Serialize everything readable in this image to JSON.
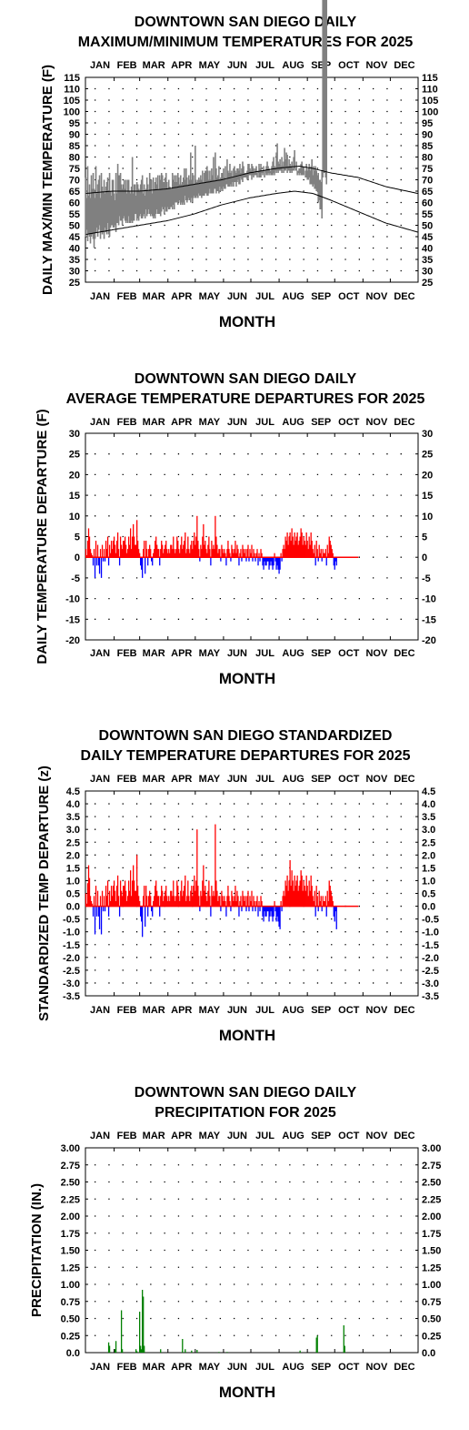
{
  "months": [
    "JAN",
    "FEB",
    "MAR",
    "APR",
    "MAY",
    "JUN",
    "JUL",
    "AUG",
    "SEP",
    "OCT",
    "NOV",
    "DEC"
  ],
  "chart_data": [
    {
      "id": "temps",
      "type": "line",
      "title": [
        "DOWNTOWN SAN DIEGO DAILY",
        "MAXIMUM/MINIMUM TEMPERATURES FOR 2025"
      ],
      "xlabel": "MONTH",
      "ylabel": "DAILY MAX/MIN TEMPERATURE (F)",
      "ylim": [
        25,
        115
      ],
      "yticks": [
        "115",
        "110",
        "105",
        "100",
        "95",
        "90",
        "85",
        "80",
        "75",
        "70",
        "65",
        "60",
        "55",
        "50",
        "45",
        "40",
        "35",
        "30",
        "25"
      ],
      "grid": true,
      "normal_max_anchors": [
        [
          1,
          64
        ],
        [
          30,
          65
        ],
        [
          60,
          65
        ],
        [
          90,
          66
        ],
        [
          120,
          68
        ],
        [
          150,
          70
        ],
        [
          180,
          73
        ],
        [
          210,
          75
        ],
        [
          235,
          76
        ],
        [
          250,
          75
        ],
        [
          270,
          73
        ],
        [
          300,
          71
        ],
        [
          330,
          67
        ],
        [
          365,
          64
        ]
      ],
      "normal_min_anchors": [
        [
          1,
          46
        ],
        [
          30,
          48
        ],
        [
          60,
          50
        ],
        [
          90,
          52
        ],
        [
          120,
          55
        ],
        [
          150,
          59
        ],
        [
          180,
          62
        ],
        [
          210,
          64
        ],
        [
          230,
          65
        ],
        [
          250,
          64
        ],
        [
          270,
          61
        ],
        [
          300,
          56
        ],
        [
          330,
          51
        ],
        [
          365,
          47
        ]
      ],
      "daily_max": [
        71,
        62,
        76,
        63,
        68,
        62,
        72,
        66,
        73,
        66,
        62,
        76,
        64,
        68,
        70,
        72,
        62,
        73,
        67,
        65,
        70,
        64,
        67,
        69,
        71,
        65,
        73,
        65,
        63,
        70,
        70,
        64,
        61,
        73,
        64,
        77,
        72,
        72,
        73,
        68,
        66,
        68,
        70,
        66,
        70,
        64,
        70,
        70,
        65,
        64,
        67,
        80,
        64,
        68,
        68,
        63,
        69,
        68,
        66,
        65,
        68,
        70,
        72,
        64,
        68,
        63,
        66,
        71,
        68,
        65,
        73,
        70,
        70,
        64,
        71,
        66,
        69,
        71,
        68,
        72,
        66,
        72,
        70,
        73,
        72,
        69,
        69,
        71,
        73,
        69,
        66,
        70,
        67,
        66,
        66,
        73,
        70,
        72,
        69,
        72,
        69,
        73,
        71,
        68,
        72,
        68,
        69,
        71,
        75,
        70,
        75,
        71,
        68,
        72,
        70,
        82,
        70,
        73,
        72,
        68,
        85,
        70,
        69,
        70,
        71,
        70,
        72,
        70,
        74,
        69,
        73,
        74,
        74,
        76,
        74,
        70,
        74,
        70,
        75,
        72,
        80,
        70,
        82,
        75,
        71,
        72,
        76,
        70,
        71,
        73,
        73,
        75,
        71,
        76,
        70,
        79,
        74,
        73,
        77,
        73,
        74,
        71,
        75,
        76,
        74,
        73,
        75,
        75,
        74,
        77,
        73,
        75,
        78,
        76,
        73,
        73,
        73,
        74,
        77,
        77,
        75,
        74,
        77,
        76,
        75,
        73,
        75,
        76,
        73,
        74,
        77,
        75,
        77,
        74,
        74,
        76,
        73,
        74,
        76,
        78,
        76,
        75,
        74,
        74,
        76,
        78,
        80,
        76,
        75,
        82,
        86,
        78,
        77,
        79,
        76,
        80,
        76,
        78,
        84,
        79,
        82,
        81,
        76,
        79,
        77,
        76,
        78,
        75,
        80,
        83,
        75,
        78,
        74,
        74,
        75,
        75,
        77,
        78,
        76,
        75,
        73,
        74,
        77,
        74,
        75,
        77,
        74,
        76,
        79,
        72,
        76,
        74,
        76,
        74,
        72,
        73,
        70,
        70,
        69,
        74,
        71,
        73,
        73,
        71,
        68
      ],
      "daily_min": [
        45,
        48,
        43,
        46,
        45,
        42,
        45,
        46,
        44,
        40,
        44,
        47,
        49,
        45,
        48,
        50,
        44,
        47,
        46,
        47,
        44,
        49,
        47,
        46,
        51,
        46,
        45,
        49,
        50,
        50,
        49,
        49,
        50,
        47,
        51,
        51,
        50,
        54,
        52,
        52,
        50,
        53,
        54,
        52,
        51,
        52,
        51,
        54,
        51,
        51,
        52,
        51,
        52,
        52,
        55,
        55,
        52,
        53,
        52,
        54,
        55,
        53,
        53,
        54,
        55,
        53,
        57,
        54,
        55,
        57,
        55,
        54,
        55,
        54,
        53,
        54,
        53,
        55,
        57,
        55,
        55,
        55,
        54,
        56,
        58,
        57,
        55,
        58,
        56,
        56,
        58,
        57,
        57,
        58,
        58,
        57,
        59,
        57,
        60,
        60,
        60,
        59,
        60,
        61,
        59,
        60,
        59,
        60,
        59,
        63,
        61,
        60,
        61,
        62,
        61,
        60,
        62,
        60,
        62,
        63,
        62,
        62,
        63,
        62,
        64,
        63,
        63,
        62,
        63,
        63,
        63,
        64,
        64,
        63,
        63,
        64,
        66,
        64,
        64,
        64,
        64,
        66,
        66,
        64,
        65,
        65,
        64,
        67,
        65,
        66,
        65,
        67,
        66,
        66,
        68,
        68,
        67,
        67,
        67,
        68,
        67,
        69,
        67,
        69,
        69,
        67,
        69,
        70,
        68,
        68,
        71,
        70,
        69,
        71,
        71,
        71,
        71,
        70,
        70,
        72,
        72,
        72,
        70,
        72,
        71,
        72,
        72,
        72,
        71,
        73,
        71,
        71,
        71,
        73,
        72,
        73,
        71,
        73,
        72,
        72,
        73,
        72,
        73,
        72,
        72,
        72,
        73,
        72,
        74,
        73,
        74,
        73,
        74,
        74,
        74,
        73,
        75,
        73,
        74,
        74,
        75,
        73,
        74,
        74,
        73,
        74,
        73,
        74,
        74,
        75,
        74,
        74,
        72,
        73,
        72,
        73,
        72,
        72,
        72,
        72,
        73,
        71,
        71,
        70,
        70,
        71,
        68,
        68,
        68,
        67,
        68,
        66,
        66,
        65,
        65,
        60,
        61,
        57,
        57,
        53
      ]
    },
    {
      "id": "depart",
      "type": "bar",
      "title": [
        "DOWNTOWN SAN DIEGO DAILY",
        "AVERAGE TEMPERATURE DEPARTURES FOR 2025"
      ],
      "xlabel": "MONTH",
      "ylabel": "DAILY TEMPERATURE DEPARTURE (F)",
      "ylim": [
        -20,
        30
      ],
      "yticks": [
        "30",
        "25",
        "20",
        "15",
        "10",
        "5",
        "0",
        "-5",
        "-10",
        "-15",
        "-20"
      ],
      "grid": true,
      "positive_color": "#ff0000",
      "negative_color": "#0000ff",
      "values": [
        2,
        0.5,
        4,
        7,
        5,
        2,
        1,
        0.5,
        -2,
        2,
        -5,
        4,
        -2,
        3,
        -2,
        -4,
        2,
        -5,
        3,
        -1,
        2,
        -1,
        4,
        2,
        5,
        -2,
        3,
        1,
        4,
        2,
        4,
        5,
        3,
        1,
        4,
        6,
        2,
        -2,
        5,
        3,
        2,
        4,
        4,
        5,
        3,
        1,
        2,
        5,
        3,
        7,
        2,
        5,
        8,
        5,
        3,
        3,
        9,
        4,
        2,
        1,
        -2,
        -3,
        -5,
        2,
        4,
        -4,
        4,
        2,
        -2,
        2,
        3,
        2,
        -1,
        -2,
        1,
        2,
        4,
        5,
        3,
        2,
        2,
        -2,
        2,
        4,
        3,
        1,
        2,
        3,
        4,
        2,
        1,
        2,
        1,
        3,
        3,
        2,
        5,
        2,
        1,
        2,
        5,
        4,
        2,
        1,
        3,
        5,
        2,
        3,
        4,
        6,
        1,
        2,
        5,
        2,
        1,
        3,
        4,
        2,
        4,
        6,
        3,
        5,
        10,
        4,
        2,
        -1,
        3,
        2,
        5,
        8,
        3,
        4,
        2,
        1,
        3,
        5,
        2,
        -2,
        4,
        2,
        3,
        2,
        10,
        5,
        3,
        1,
        2,
        2,
        -1,
        3,
        2,
        1,
        2,
        1,
        -2,
        2,
        4,
        2,
        1,
        -1,
        3,
        2,
        1,
        2,
        4,
        1,
        3,
        2,
        -2,
        1,
        2,
        -1,
        3,
        2,
        1,
        2,
        -1,
        2,
        3,
        -1,
        2,
        1,
        3,
        -1,
        2,
        1,
        -1,
        1,
        2,
        -2,
        1,
        -1,
        2,
        1,
        -2,
        -3,
        -1,
        -2,
        -2,
        -1,
        -1,
        -3,
        -2,
        -1,
        -2,
        -3,
        -2,
        1,
        -1,
        -3,
        -2,
        -3,
        -4,
        -3,
        1,
        -1,
        2,
        3,
        2,
        5,
        4,
        6,
        3,
        5,
        6,
        4,
        7,
        5,
        3,
        6,
        4,
        5,
        6,
        3,
        4,
        5,
        7,
        6,
        3,
        5,
        4,
        3,
        6,
        4,
        2,
        5,
        3,
        6,
        4,
        2,
        1,
        3,
        -2,
        4,
        2,
        -1,
        3,
        1,
        2,
        -1,
        2,
        1,
        1,
        2,
        -2,
        3,
        1,
        5,
        4,
        3,
        2,
        1,
        -2,
        -3,
        -1,
        -2
      ],
      "zero_line_end_day": 300
    },
    {
      "id": "zdepart",
      "type": "bar",
      "title": [
        "DOWNTOWN SAN DIEGO STANDARDIZED",
        "DAILY TEMPERATURE DEPARTURES FOR 2025"
      ],
      "xlabel": "MONTH",
      "ylabel": "STANDARDIZED TEMP DEPARTURE (z)",
      "ylim": [
        -3.5,
        4.5
      ],
      "yticks": [
        "4.5",
        "4.0",
        "3.5",
        "3.0",
        "2.5",
        "2.0",
        "1.5",
        "1.0",
        "0.5",
        "0.0",
        "-0.5",
        "-1.0",
        "-1.5",
        "-2.0",
        "-2.5",
        "-3.0",
        "-3.5"
      ],
      "grid": true,
      "positive_color": "#ff0000",
      "negative_color": "#0000ff",
      "values": [
        0.5,
        0.1,
        0.9,
        1.6,
        1.1,
        0.4,
        0.2,
        0.1,
        -0.4,
        0.4,
        -1.1,
        0.8,
        -0.4,
        0.6,
        -0.4,
        -0.9,
        0.4,
        -1.1,
        0.6,
        -0.2,
        0.4,
        -0.2,
        0.8,
        0.4,
        1.0,
        -0.4,
        0.6,
        0.2,
        0.8,
        0.4,
        0.8,
        1.0,
        0.6,
        0.2,
        0.8,
        1.2,
        0.4,
        -0.4,
        1.0,
        0.6,
        0.4,
        0.8,
        0.8,
        1.0,
        0.6,
        0.2,
        0.4,
        1.0,
        0.6,
        1.4,
        0.4,
        1.0,
        1.6,
        1.0,
        0.6,
        0.6,
        2.0,
        0.8,
        0.4,
        0.2,
        -0.4,
        -0.6,
        -1.2,
        0.4,
        0.8,
        -0.8,
        0.8,
        0.4,
        -0.4,
        0.4,
        0.6,
        0.4,
        -0.2,
        -0.4,
        0.2,
        0.4,
        0.8,
        1.0,
        0.6,
        0.4,
        0.4,
        -0.4,
        0.4,
        0.8,
        0.6,
        0.2,
        0.4,
        0.6,
        0.8,
        0.4,
        0.2,
        0.4,
        0.2,
        0.6,
        0.6,
        0.4,
        1.0,
        0.4,
        0.2,
        0.4,
        1.0,
        0.8,
        0.4,
        0.2,
        0.6,
        1.0,
        0.4,
        0.6,
        0.8,
        1.2,
        0.2,
        0.4,
        1.0,
        0.4,
        0.2,
        0.6,
        0.8,
        0.4,
        0.8,
        1.2,
        0.6,
        1.0,
        3.0,
        0.8,
        0.4,
        -0.2,
        0.6,
        0.4,
        1.0,
        1.6,
        0.6,
        0.8,
        0.4,
        0.2,
        0.6,
        1.0,
        0.4,
        -0.4,
        0.8,
        0.4,
        0.6,
        0.4,
        3.2,
        1.0,
        0.6,
        0.2,
        0.4,
        0.4,
        -0.2,
        0.6,
        0.4,
        0.2,
        0.4,
        0.2,
        -0.4,
        0.4,
        0.8,
        0.4,
        0.2,
        -0.2,
        0.6,
        0.4,
        0.2,
        0.4,
        0.8,
        0.2,
        0.6,
        0.4,
        -0.4,
        0.2,
        0.4,
        -0.2,
        0.6,
        0.4,
        0.2,
        0.4,
        -0.2,
        0.4,
        0.6,
        -0.2,
        0.4,
        0.2,
        0.6,
        -0.2,
        0.4,
        0.2,
        -0.2,
        0.2,
        0.4,
        -0.4,
        0.2,
        -0.2,
        0.4,
        0.2,
        -0.4,
        -0.6,
        -0.2,
        -0.4,
        -0.4,
        -0.2,
        -0.2,
        -0.6,
        -0.4,
        -0.2,
        -0.4,
        -0.6,
        -0.4,
        0.2,
        -0.2,
        -0.6,
        -0.4,
        -0.6,
        -0.8,
        -0.9,
        0.2,
        -0.2,
        0.4,
        0.6,
        0.4,
        1.0,
        0.8,
        1.2,
        0.6,
        1.0,
        1.8,
        0.8,
        1.4,
        1.0,
        0.6,
        1.2,
        0.8,
        1.0,
        1.2,
        0.6,
        0.8,
        1.0,
        1.4,
        1.2,
        0.6,
        1.0,
        0.8,
        0.6,
        1.2,
        0.8,
        0.4,
        1.0,
        0.6,
        1.2,
        0.8,
        0.4,
        0.2,
        0.6,
        -0.4,
        0.8,
        0.4,
        -0.2,
        0.6,
        0.2,
        0.4,
        -0.2,
        0.4,
        0.2,
        0.2,
        0.4,
        -0.4,
        0.6,
        0.2,
        1.0,
        0.8,
        0.6,
        0.4,
        0.2,
        -0.4,
        -0.6,
        -0.2,
        -0.9
      ],
      "zero_line_end_day": 300
    },
    {
      "id": "precip",
      "type": "bar",
      "title": [
        "DOWNTOWN SAN DIEGO DAILY",
        "PRECIPITATION FOR 2025"
      ],
      "xlabel": "MONTH",
      "ylabel": "PRECIPITATION (IN.)",
      "ylim": [
        0,
        3
      ],
      "yticks": [
        "3.00",
        "2.75",
        "2.50",
        "2.25",
        "2.00",
        "1.75",
        "1.50",
        "1.25",
        "1.00",
        "0.75",
        "0.50",
        "0.25",
        "0.0"
      ],
      "grid": true,
      "bar_color": "#008000",
      "values": [
        [
          26,
          0.15
        ],
        [
          27,
          0.1
        ],
        [
          33,
          0.05
        ],
        [
          34,
          0.17
        ],
        [
          40,
          0.62
        ],
        [
          41,
          0.05
        ],
        [
          56,
          0.05
        ],
        [
          57,
          0.02
        ],
        [
          60,
          0.6
        ],
        [
          61,
          0.1
        ],
        [
          62,
          0.05
        ],
        [
          63,
          0.92
        ],
        [
          64,
          0.82
        ],
        [
          65,
          0.1
        ],
        [
          83,
          0.05
        ],
        [
          107,
          0.2
        ],
        [
          110,
          0.05
        ],
        [
          117,
          0.03
        ],
        [
          123,
          0.04
        ],
        [
          147,
          0.01
        ],
        [
          156,
          0.01
        ],
        [
          236,
          0.03
        ],
        [
          254,
          0.22
        ],
        [
          255,
          0.25
        ],
        [
          284,
          0.4
        ],
        [
          285,
          0.1
        ]
      ]
    }
  ]
}
